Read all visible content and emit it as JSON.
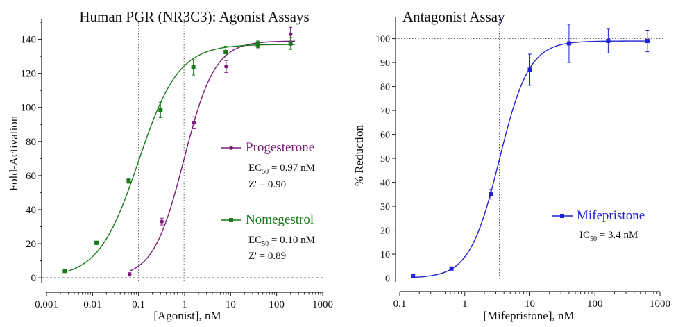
{
  "chart_data": [
    {
      "type": "scatter",
      "title": "Human PGR (NR3C3): Agonist Assays",
      "xlabel": "[Agonist], nM",
      "ylabel": "Fold-Activation",
      "xscale": "log",
      "xlim": [
        0.001,
        1000
      ],
      "ylim": [
        -2,
        150
      ],
      "x_ticks": [
        0.001,
        0.01,
        0.1,
        1,
        10,
        100,
        1000
      ],
      "x_tick_labels": [
        "0.001",
        "0.01",
        "0.1",
        "1",
        "10",
        "100",
        "1000"
      ],
      "y_ticks": [
        0,
        20,
        40,
        60,
        80,
        100,
        120,
        140
      ],
      "y_tick_labels": [
        "0",
        "20",
        "40",
        "60",
        "80",
        "100",
        "120",
        "140"
      ],
      "reference_lines": {
        "vertical_x": [
          0.1,
          0.97
        ],
        "horizontal_y": [
          0
        ]
      },
      "series": [
        {
          "name": "Progesterone",
          "color": "#7a1a7a",
          "marker": "circle",
          "x": [
            0.064,
            0.32,
            1.6,
            8,
            40,
            200
          ],
          "y": [
            2,
            33,
            91,
            124,
            137,
            143
          ],
          "err": [
            1,
            2,
            3.5,
            3.5,
            2,
            4
          ],
          "fit": {
            "bottom": 0,
            "top": 139,
            "ec50": 0.97,
            "hill": 1.3
          },
          "annotation": {
            "ec50_prefix": "EC",
            "ec50_sub": "50",
            "ec50_value": " = 0.97 nM",
            "zprime": "Z' = 0.90"
          }
        },
        {
          "name": "Nomegestrol",
          "color": "#1a7a1a",
          "marker": "square",
          "x": [
            0.0025,
            0.0122,
            0.061,
            0.3,
            1.55,
            7.8,
            39,
            200
          ],
          "y": [
            4,
            20.5,
            57,
            98.5,
            123.5,
            132.5,
            137,
            137.5
          ],
          "err": [
            0.5,
            1,
            1.5,
            4.5,
            4.5,
            3.5,
            2,
            3.5
          ],
          "fit": {
            "bottom": 0,
            "top": 137,
            "ec50": 0.1,
            "hill": 1.0
          },
          "annotation": {
            "ec50_prefix": "EC",
            "ec50_sub": "50",
            "ec50_value": " = 0.10 nM",
            "zprime": "Z' = 0.89"
          }
        }
      ]
    },
    {
      "type": "scatter",
      "title": "Antagonist Assay",
      "xlabel": "[Mifepristone], nM",
      "ylabel": "% Reduction",
      "xscale": "log",
      "xlim": [
        0.1,
        1000
      ],
      "ylim": [
        -1,
        108
      ],
      "x_ticks": [
        0.1,
        1,
        10,
        100,
        1000
      ],
      "x_tick_labels": [
        "0.1",
        "1",
        "10",
        "100",
        "1000"
      ],
      "y_ticks": [
        0,
        10,
        20,
        30,
        40,
        50,
        60,
        70,
        80,
        90,
        100
      ],
      "y_tick_labels": [
        "0",
        "10",
        "20",
        "30",
        "40",
        "50",
        "60",
        "70",
        "80",
        "90",
        "100"
      ],
      "reference_lines": {
        "vertical_x": [
          3.4
        ],
        "horizontal_y": [
          100
        ]
      },
      "series": [
        {
          "name": "Mifepristone",
          "color": "#2020d0",
          "marker": "square",
          "x": [
            0.16,
            0.625,
            2.5,
            10,
            40,
            160,
            640
          ],
          "y": [
            1,
            4,
            35,
            87,
            98,
            99,
            99
          ],
          "err": [
            0.5,
            0.5,
            2,
            6.5,
            8,
            5,
            4.5
          ],
          "fit": {
            "bottom": 0,
            "top": 99,
            "ec50": 3.4,
            "hill": 1.9
          },
          "annotation": {
            "ec50_prefix": "IC",
            "ec50_sub": "50",
            "ec50_value": " = 3.4 nM",
            "zprime": ""
          }
        }
      ]
    }
  ]
}
